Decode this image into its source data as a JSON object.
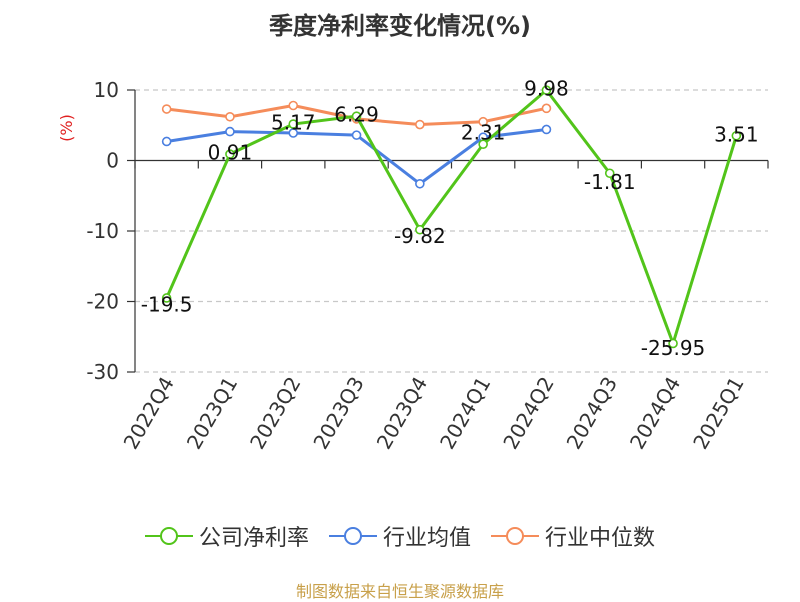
{
  "chart_data": {
    "type": "line",
    "title": "季度净利率变化情况(%)",
    "ylabel": "(%)",
    "xlabel": "",
    "categories": [
      "2022Q4",
      "2023Q1",
      "2023Q2",
      "2023Q3",
      "2023Q4",
      "2024Q1",
      "2024Q2",
      "2024Q3",
      "2024Q4",
      "2025Q1"
    ],
    "ylim": [
      -30,
      10
    ],
    "yticks": [
      10,
      0,
      -10,
      -20,
      -30
    ],
    "grid": true,
    "legend_position": "bottom",
    "series": [
      {
        "name": "公司净利率",
        "color": "#52c41a",
        "values": [
          -19.5,
          0.91,
          5.17,
          6.29,
          -9.82,
          2.31,
          9.98,
          -1.81,
          -25.95,
          3.51
        ],
        "labels": [
          "-19.5",
          "0.91",
          "5.17",
          "6.29",
          "-9.82",
          "2.31",
          "9.98",
          "-1.81",
          "-25.95",
          "3.51"
        ]
      },
      {
        "name": "行业均值",
        "color": "#4a7fe0",
        "values": [
          2.7,
          4.1,
          3.9,
          3.6,
          -3.3,
          3.3,
          4.4,
          null,
          null,
          null
        ]
      },
      {
        "name": "行业中位数",
        "color": "#f58c5a",
        "values": [
          7.3,
          6.2,
          7.8,
          5.9,
          5.1,
          5.5,
          7.4,
          null,
          null,
          null
        ]
      }
    ]
  },
  "source": "制图数据来自恒生聚源数据库"
}
